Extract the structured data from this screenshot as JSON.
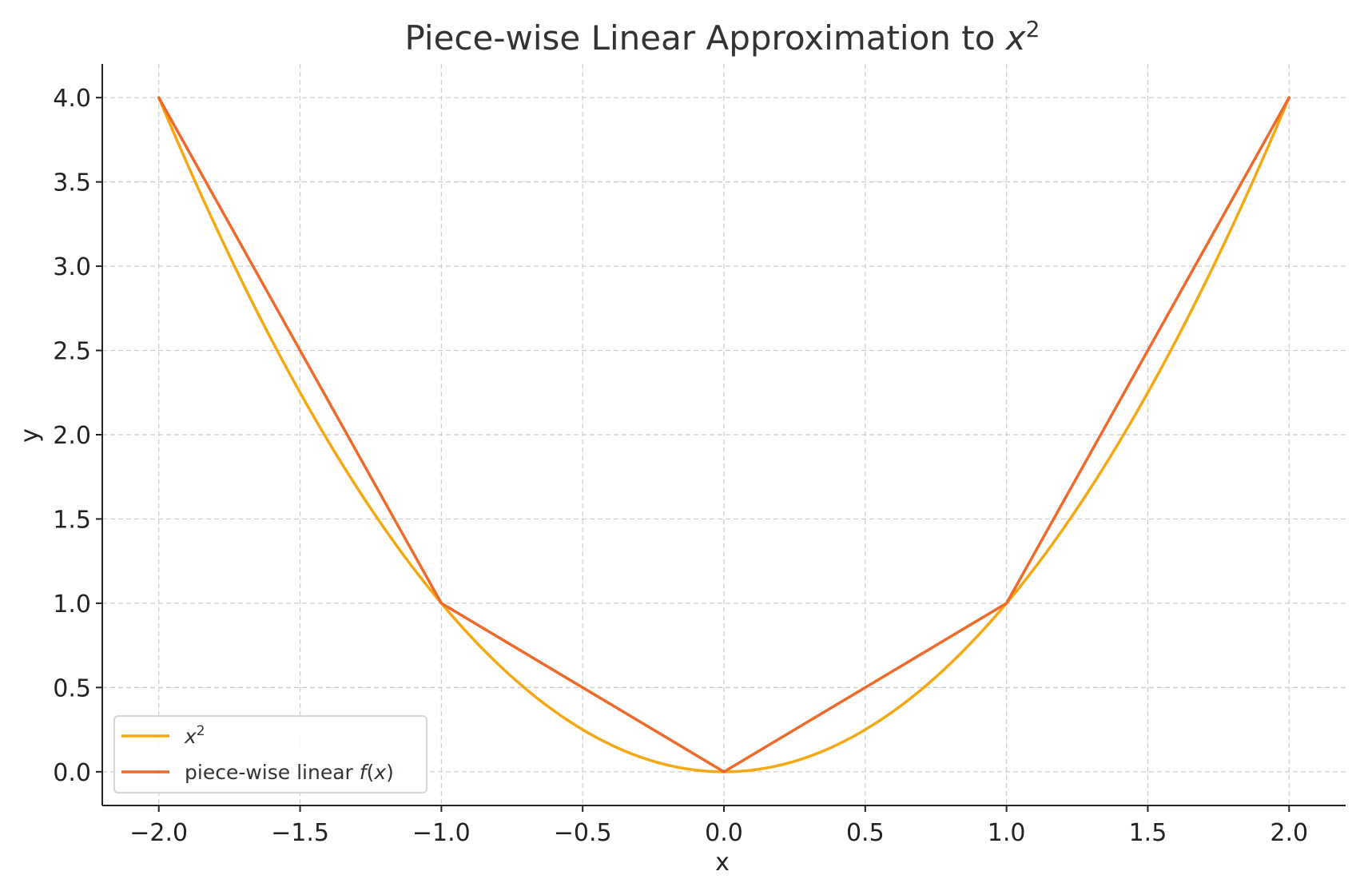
{
  "chart_data": {
    "type": "line",
    "title": "Piece-wise Linear Approximation to x²",
    "xlabel": "x",
    "ylabel": "y",
    "xlim": [
      -2.2,
      2.2
    ],
    "ylim": [
      -0.2,
      4.2
    ],
    "xticks": [
      -2.0,
      -1.5,
      -1.0,
      -0.5,
      0.0,
      0.5,
      1.0,
      1.5,
      2.0
    ],
    "xtick_labels": [
      "−2.0",
      "−1.5",
      "−1.0",
      "−0.5",
      "0.0",
      "0.5",
      "1.0",
      "1.5",
      "2.0"
    ],
    "yticks": [
      0.0,
      0.5,
      1.0,
      1.5,
      2.0,
      2.5,
      3.0,
      3.5,
      4.0
    ],
    "ytick_labels": [
      "0.0",
      "0.5",
      "1.0",
      "1.5",
      "2.0",
      "2.5",
      "3.0",
      "3.5",
      "4.0"
    ],
    "grid": true,
    "legend_position": "lower-left",
    "series": [
      {
        "name": "x²",
        "color": "#F5A812",
        "function": "x^2",
        "x": [
          -2.0,
          -1.75,
          -1.5,
          -1.25,
          -1.0,
          -0.75,
          -0.5,
          -0.25,
          0.0,
          0.25,
          0.5,
          0.75,
          1.0,
          1.25,
          1.5,
          1.75,
          2.0
        ],
        "y": [
          4.0,
          3.0625,
          2.25,
          1.5625,
          1.0,
          0.5625,
          0.25,
          0.0625,
          0.0,
          0.0625,
          0.25,
          0.5625,
          1.0,
          1.5625,
          2.25,
          3.0625,
          4.0
        ]
      },
      {
        "name": "piece-wise linear f(x)",
        "color": "#EE6A2A",
        "x": [
          -2.0,
          -1.0,
          0.0,
          1.0,
          2.0
        ],
        "y": [
          4.0,
          1.0,
          0.0,
          1.0,
          4.0
        ]
      }
    ]
  }
}
